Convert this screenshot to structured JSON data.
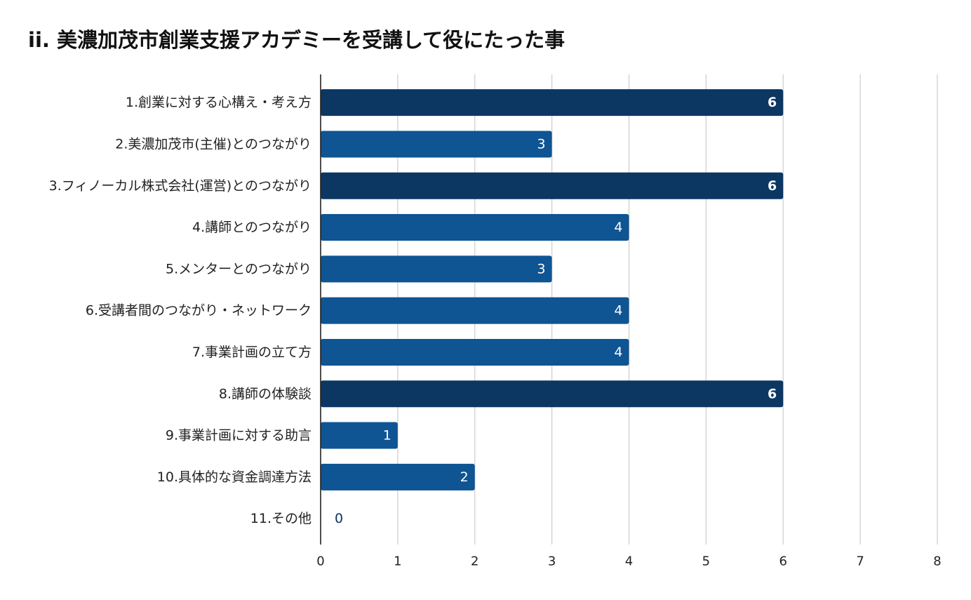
{
  "chart_data": {
    "type": "bar",
    "orientation": "horizontal",
    "title": "ii. 美濃加茂市創業支援アカデミーを受講して役にたった事",
    "xlabel": "",
    "ylabel": "",
    "xlim": [
      0,
      8
    ],
    "xticks": [
      0,
      1,
      2,
      3,
      4,
      5,
      6,
      7,
      8
    ],
    "grid": true,
    "categories": [
      "1.創業に対する心構え・考え方",
      "2.美濃加茂市(主催)とのつながり",
      "3.フィノーカル株式会社(運営)とのつながり",
      "4.講師とのつながり",
      "5.メンターとのつながり",
      "6.受講者間のつながり・ネットワーク",
      "7.事業計画の立て方",
      "8.講師の体験談",
      "9.事業計画に対する助言",
      "10.具体的な資金調達方法",
      "11.その他"
    ],
    "values": [
      6,
      3,
      6,
      4,
      3,
      4,
      4,
      6,
      1,
      2,
      0
    ],
    "colors": {
      "bar": "#0f5493",
      "bar_highlight": "#0b3762",
      "data_label": "#ffffff",
      "data_label_outside": "#0b3762",
      "grid": "#cfcfcf",
      "axis": "#222222"
    }
  }
}
